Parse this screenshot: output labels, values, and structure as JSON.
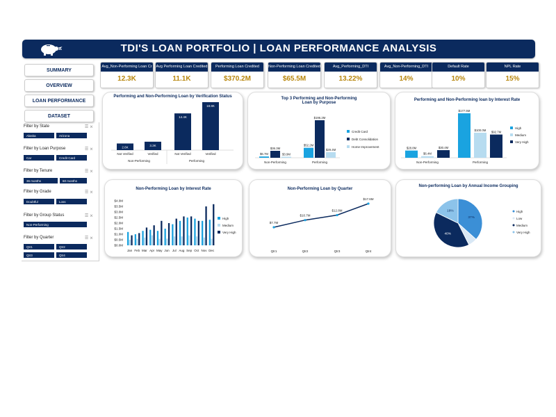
{
  "header": {
    "title": "TDI'S LOAN PORTFOLIO | LOAN PERFORMANCE ANALYSIS"
  },
  "nav": [
    "SUMMARY",
    "OVERVIEW",
    "LOAN PERFORMANCE",
    "DATASET"
  ],
  "filters": [
    {
      "label": "Filter by State",
      "chips": [
        "Alaska",
        "Arizona"
      ]
    },
    {
      "label": "Filter by Loan Purpose",
      "chips": [
        "Car",
        "Credit Card"
      ]
    },
    {
      "label": "Filter by Tenure",
      "chips": [
        "36 months",
        "60 months"
      ]
    },
    {
      "label": "Filter by Grade",
      "chips": [
        "Doubtful",
        "Loss"
      ]
    },
    {
      "label": "Filter by Group Status",
      "chips": [
        "Non-Performing"
      ]
    },
    {
      "label": "Filter by Quarter",
      "chips": [
        "Qtr1",
        "Qtr2",
        "Qtr3",
        "Qtr4"
      ]
    }
  ],
  "kpis": [
    {
      "label": "Avg_Non-Performing Loan Cr",
      "value": "12.3K"
    },
    {
      "label": "Avg Performing Loan Credited",
      "value": "11.1K"
    },
    {
      "label": "Performing Loan Credited",
      "value": "$370.2M"
    },
    {
      "label": "Non-Performing Loan Credited",
      "value": "$65.5M"
    },
    {
      "label": "Avg_Performing_DTI",
      "value": "13.22%"
    },
    {
      "label": "Avg_Non-Performing_DTI",
      "value": "14%"
    },
    {
      "label": "Default Rate",
      "value": "10%"
    },
    {
      "label": "NPL Rate",
      "value": "15%"
    }
  ],
  "colors": {
    "navy": "#0b2a5e",
    "dark": "#0a2a63",
    "cyan": "#1aa3e0",
    "light": "#b7dcf0",
    "mid": "#3b8fd6",
    "gold": "#b8860b"
  },
  "chart_data": [
    {
      "type": "bar",
      "title": "Performing and Non-Performing Loan by Verification Status",
      "groups": [
        "Non-Performing",
        "Performing"
      ],
      "categories": [
        "Not Verified",
        "Verified",
        "Not Verified",
        "Verified"
      ],
      "values": [
        2.6,
        3.3,
        14.4,
        18.8
      ],
      "labels": [
        "2.6K",
        "3.3K",
        "14.4K",
        "18.8K"
      ]
    },
    {
      "type": "bar",
      "title": "Top 3 Performing and Non-Performing Loan by Purpose",
      "categories": [
        "Non-Performing",
        "Performing"
      ],
      "series": [
        {
          "name": "Credit Card",
          "values": [
            6.7,
            52.2
          ],
          "labels": [
            "$6.7M",
            "$52.2M"
          ]
        },
        {
          "name": "Debt Consolidation",
          "values": [
            36.3,
            196.2
          ],
          "labels": [
            "$36.3M",
            "$196.2M"
          ]
        },
        {
          "name": "Home Improvement",
          "values": [
            3.9,
            29.4
          ],
          "labels": [
            "$3.9M",
            "$29.4M"
          ]
        }
      ]
    },
    {
      "type": "bar",
      "title": "Performing and Non-Performing loan by Interest Rate",
      "categories": [
        "Non-Performing",
        "Performing"
      ],
      "series": [
        {
          "name": "High",
          "values": [
            28.8,
            177.5
          ],
          "labels": [
            "$28.8M",
            "$177.5M"
          ]
        },
        {
          "name": "Medium",
          "values": [
            6.4,
            100.0
          ],
          "labels": [
            "$6.4M",
            "$100.0M"
          ]
        },
        {
          "name": "Very High",
          "values": [
            30.4,
            92.7
          ],
          "labels": [
            "$30.4M",
            "$92.7M"
          ]
        }
      ]
    },
    {
      "type": "bar",
      "title": "Non-Performing Loan by Interest Rate",
      "categories": [
        "Jan",
        "Feb",
        "Mar",
        "Apr",
        "May",
        "Jun",
        "Jul",
        "Aug",
        "Sep",
        "Oct",
        "Nov",
        "Dec"
      ],
      "yticks": [
        "$4.0M",
        "$3.5M",
        "$3.0M",
        "$2.5M",
        "$2.0M",
        "$1.5M",
        "$1.0M",
        "$0.5M",
        "$0.0M"
      ],
      "ylim": [
        0,
        4.0
      ],
      "series": [
        {
          "name": "High",
          "values": [
            1.2,
            1.0,
            1.3,
            1.4,
            1.3,
            1.5,
            1.9,
            2.2,
            2.5,
            2.4,
            2.2,
            2.3
          ]
        },
        {
          "name": "Medium",
          "values": [
            0.5,
            0.6,
            0.7,
            0.9,
            0.6,
            0.6,
            0.8,
            0.8,
            0.9,
            0.8,
            0.7,
            0.6
          ]
        },
        {
          "name": "Very High",
          "values": [
            0.9,
            1.1,
            1.6,
            1.8,
            2.2,
            2.0,
            2.4,
            2.6,
            2.6,
            2.2,
            3.5,
            3.7
          ]
        }
      ]
    },
    {
      "type": "line",
      "title": "Non-Performing Loan by Quarter",
      "categories": [
        "Qtr1",
        "Qtr2",
        "Qtr3",
        "Qtr4"
      ],
      "values": [
        7.7,
        10.7,
        12.8,
        17.6
      ],
      "labels": [
        "$7.7M",
        "$10.7M",
        "$12.8M",
        "$17.6M"
      ]
    },
    {
      "type": "pie",
      "title": "Non-performing Loan by Annual Income Grouping",
      "categories": [
        "High",
        "Low",
        "Medium",
        "Very High"
      ],
      "values": [
        37,
        6,
        40,
        18
      ],
      "labels": [
        "37%",
        "",
        "40%",
        "18%"
      ]
    }
  ]
}
